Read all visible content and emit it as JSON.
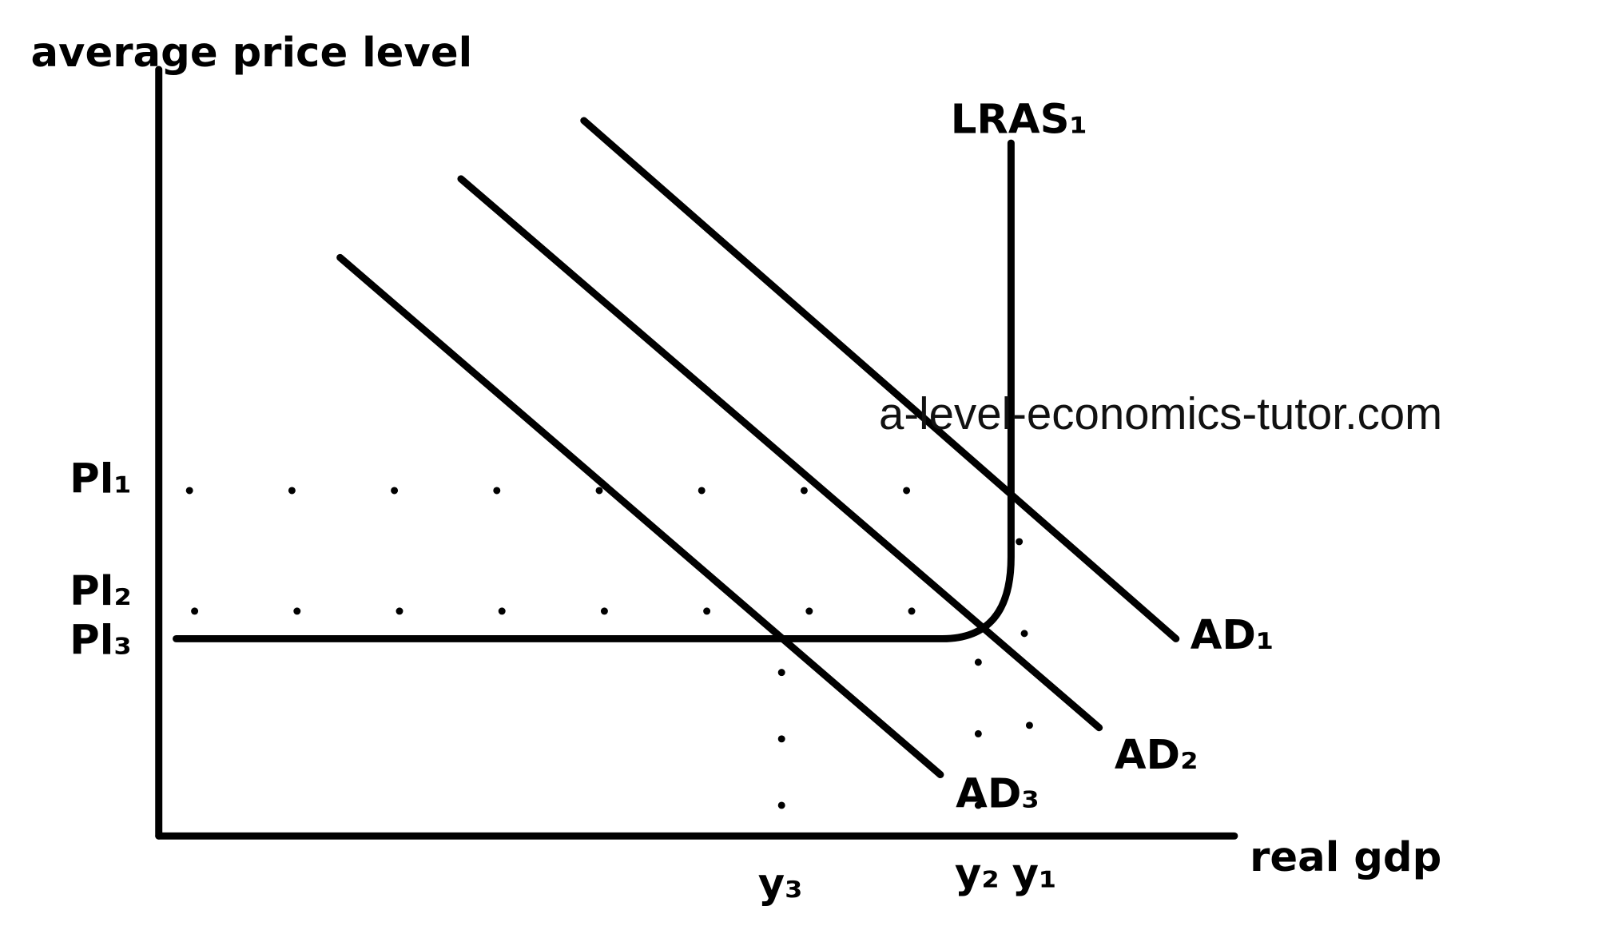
{
  "axes": {
    "y_label": "average price level",
    "x_label": "real gdp"
  },
  "curves": [
    {
      "label": "LRAS₁"
    },
    {
      "label": "AD₁"
    },
    {
      "label": "AD₂"
    },
    {
      "label": "AD₃"
    }
  ],
  "price_levels": [
    "Pl₁",
    "Pl₂",
    "Pl₃"
  ],
  "outputs": [
    "y₃",
    "y₂",
    "y₁"
  ],
  "watermark": "a-level-economics-tutor.com"
}
